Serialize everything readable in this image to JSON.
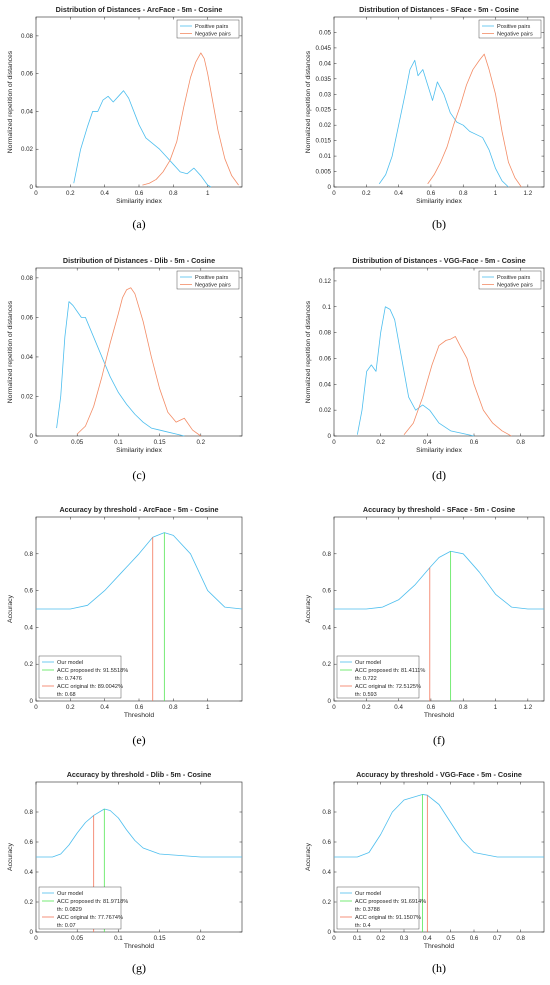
{
  "colors": {
    "positive": "#4dbeee",
    "negative": "#f38c66",
    "proposed": "#55e655",
    "original": "#f3765b",
    "axis": "#262626"
  },
  "chart_data": [
    {
      "type": "line",
      "label": "(a)",
      "title": "Distribution of Distances - ArcFace - 5m - Cosine",
      "xlabel": "Similarity index",
      "ylabel": "Normalized repetition of distances",
      "xlim": [
        0,
        1.2
      ],
      "ylim": [
        0,
        0.09
      ],
      "xticks": [
        0,
        0.2,
        0.4,
        0.6,
        0.8,
        1
      ],
      "yticks": [
        0,
        0.02,
        0.04,
        0.06,
        0.08
      ],
      "legend": {
        "position": "top-right",
        "entries": [
          "Positive pairs",
          "Negative pairs"
        ]
      },
      "series": [
        {
          "name": "Positive pairs",
          "x": [
            0.22,
            0.26,
            0.3,
            0.33,
            0.36,
            0.39,
            0.42,
            0.45,
            0.48,
            0.51,
            0.54,
            0.57,
            0.6,
            0.64,
            0.68,
            0.72,
            0.76,
            0.8,
            0.84,
            0.88,
            0.92,
            0.96,
            1.0,
            1.02
          ],
          "y": [
            0.002,
            0.02,
            0.032,
            0.04,
            0.04,
            0.046,
            0.048,
            0.045,
            0.048,
            0.051,
            0.047,
            0.04,
            0.033,
            0.026,
            0.023,
            0.02,
            0.016,
            0.012,
            0.008,
            0.007,
            0.01,
            0.006,
            0.001,
            0
          ]
        },
        {
          "name": "Negative pairs",
          "x": [
            0.62,
            0.66,
            0.7,
            0.74,
            0.78,
            0.82,
            0.86,
            0.9,
            0.93,
            0.96,
            0.98,
            1.0,
            1.03,
            1.06,
            1.1,
            1.14,
            1.18
          ],
          "y": [
            0.001,
            0.002,
            0.004,
            0.008,
            0.014,
            0.024,
            0.042,
            0.058,
            0.066,
            0.071,
            0.068,
            0.06,
            0.045,
            0.03,
            0.015,
            0.006,
            0.001
          ]
        }
      ]
    },
    {
      "type": "line",
      "label": "(b)",
      "title": "Distribution of Distances - SFace - 5m - Cosine",
      "xlabel": "Similarity index",
      "ylabel": "Normalized repetition of distances",
      "xlim": [
        0,
        1.3
      ],
      "ylim": [
        0,
        0.055
      ],
      "xticks": [
        0,
        0.2,
        0.4,
        0.6,
        0.8,
        1,
        1.2
      ],
      "yticks": [
        0,
        0.005,
        0.01,
        0.015,
        0.02,
        0.025,
        0.03,
        0.035,
        0.04,
        0.045,
        0.05
      ],
      "legend": {
        "position": "top-right",
        "entries": [
          "Positive pairs",
          "Negative pairs"
        ]
      },
      "series": [
        {
          "name": "Positive pairs",
          "x": [
            0.28,
            0.32,
            0.36,
            0.4,
            0.44,
            0.47,
            0.5,
            0.52,
            0.55,
            0.58,
            0.61,
            0.64,
            0.68,
            0.72,
            0.76,
            0.8,
            0.84,
            0.88,
            0.92,
            0.96,
            1.0,
            1.04,
            1.08
          ],
          "y": [
            0.001,
            0.004,
            0.01,
            0.02,
            0.03,
            0.038,
            0.041,
            0.036,
            0.038,
            0.033,
            0.028,
            0.034,
            0.03,
            0.024,
            0.021,
            0.02,
            0.018,
            0.017,
            0.016,
            0.012,
            0.006,
            0.002,
            0
          ]
        },
        {
          "name": "Negative pairs",
          "x": [
            0.58,
            0.62,
            0.66,
            0.7,
            0.74,
            0.78,
            0.82,
            0.86,
            0.9,
            0.93,
            0.96,
            1.0,
            1.04,
            1.08,
            1.12,
            1.16
          ],
          "y": [
            0.001,
            0.004,
            0.008,
            0.013,
            0.02,
            0.026,
            0.033,
            0.038,
            0.041,
            0.043,
            0.038,
            0.03,
            0.018,
            0.008,
            0.003,
            0
          ]
        }
      ]
    },
    {
      "type": "line",
      "label": "(c)",
      "title": "Distribution of Distances - Dlib - 5m - Cosine",
      "xlabel": "Similarity index",
      "ylabel": "Normalized repetition of distances",
      "xlim": [
        0,
        0.25
      ],
      "ylim": [
        0,
        0.085
      ],
      "xticks": [
        0,
        0.05,
        0.1,
        0.15,
        0.2
      ],
      "yticks": [
        0,
        0.02,
        0.04,
        0.06,
        0.08
      ],
      "legend": {
        "position": "top-right",
        "entries": [
          "Positive pairs",
          "Negative pairs"
        ]
      },
      "series": [
        {
          "name": "Positive pairs",
          "x": [
            0.025,
            0.03,
            0.035,
            0.04,
            0.045,
            0.05,
            0.055,
            0.06,
            0.065,
            0.07,
            0.08,
            0.09,
            0.1,
            0.11,
            0.12,
            0.13,
            0.14,
            0.15,
            0.16,
            0.17,
            0.18
          ],
          "y": [
            0.004,
            0.02,
            0.05,
            0.068,
            0.066,
            0.063,
            0.06,
            0.06,
            0.055,
            0.05,
            0.04,
            0.03,
            0.022,
            0.016,
            0.011,
            0.007,
            0.004,
            0.003,
            0.002,
            0.001,
            0
          ]
        },
        {
          "name": "Negative pairs",
          "x": [
            0.05,
            0.06,
            0.07,
            0.08,
            0.09,
            0.1,
            0.105,
            0.11,
            0.115,
            0.12,
            0.13,
            0.14,
            0.15,
            0.16,
            0.17,
            0.18,
            0.19,
            0.2
          ],
          "y": [
            0.001,
            0.005,
            0.015,
            0.03,
            0.047,
            0.062,
            0.07,
            0.074,
            0.075,
            0.072,
            0.058,
            0.04,
            0.024,
            0.012,
            0.007,
            0.009,
            0.003,
            0
          ]
        }
      ]
    },
    {
      "type": "line",
      "label": "(d)",
      "title": "Distribution of Distances - VGG-Face - 5m - Cosine",
      "xlabel": "Similarity index",
      "ylabel": "Normalized repetition of distances",
      "xlim": [
        0,
        0.9
      ],
      "ylim": [
        0,
        0.13
      ],
      "xticks": [
        0,
        0.2,
        0.4,
        0.6,
        0.8
      ],
      "yticks": [
        0,
        0.02,
        0.04,
        0.06,
        0.08,
        0.1,
        0.12
      ],
      "legend": {
        "position": "top-right",
        "entries": [
          "Positive pairs",
          "Negative pairs"
        ]
      },
      "series": [
        {
          "name": "Positive pairs",
          "x": [
            0.1,
            0.12,
            0.14,
            0.16,
            0.18,
            0.2,
            0.22,
            0.24,
            0.26,
            0.28,
            0.3,
            0.32,
            0.35,
            0.38,
            0.41,
            0.45,
            0.5,
            0.55,
            0.6
          ],
          "y": [
            0.001,
            0.02,
            0.05,
            0.055,
            0.05,
            0.08,
            0.1,
            0.098,
            0.09,
            0.07,
            0.05,
            0.03,
            0.02,
            0.024,
            0.02,
            0.01,
            0.004,
            0.002,
            0
          ]
        },
        {
          "name": "Negative pairs",
          "x": [
            0.3,
            0.34,
            0.38,
            0.42,
            0.45,
            0.48,
            0.5,
            0.52,
            0.54,
            0.57,
            0.6,
            0.64,
            0.68,
            0.72,
            0.76
          ],
          "y": [
            0.001,
            0.01,
            0.03,
            0.055,
            0.07,
            0.074,
            0.075,
            0.077,
            0.07,
            0.06,
            0.04,
            0.02,
            0.01,
            0.004,
            0
          ]
        }
      ]
    },
    {
      "type": "line",
      "label": "(e)",
      "title": "Accuracy by threshold - ArcFace - 5m - Cosine",
      "xlabel": "Threshold",
      "ylabel": "Accuracy",
      "xlim": [
        0,
        1.2
      ],
      "ylim": [
        0,
        1
      ],
      "xticks": [
        0,
        0.2,
        0.4,
        0.6,
        0.8,
        1
      ],
      "yticks": [
        0,
        0.2,
        0.4,
        0.6,
        0.8
      ],
      "legend": {
        "position": "bottom-left",
        "entries": [
          "Our model",
          "ACC proposed th: 91.5518%",
          "th: 0.7476",
          "ACC original th: 89.0042%",
          "th: 0.68"
        ]
      },
      "series": [
        {
          "name": "Our model",
          "x": [
            0,
            0.2,
            0.3,
            0.4,
            0.5,
            0.6,
            0.68,
            0.7476,
            0.8,
            0.9,
            1.0,
            1.1,
            1.2
          ],
          "y": [
            0.5,
            0.5,
            0.52,
            0.6,
            0.7,
            0.8,
            0.89,
            0.915,
            0.9,
            0.8,
            0.6,
            0.51,
            0.5
          ]
        }
      ],
      "markers": [
        {
          "name": "ACC proposed",
          "x": 0.7476,
          "y": 0.915
        },
        {
          "name": "ACC original",
          "x": 0.68,
          "y": 0.89
        }
      ]
    },
    {
      "type": "line",
      "label": "(f)",
      "title": "Accuracy by threshold - SFace - 5m - Cosine",
      "xlabel": "Threshold",
      "ylabel": "Accuracy",
      "xlim": [
        0,
        1.3
      ],
      "ylim": [
        0,
        1
      ],
      "xticks": [
        0,
        0.2,
        0.4,
        0.6,
        0.8,
        1,
        1.2
      ],
      "yticks": [
        0,
        0.2,
        0.4,
        0.6,
        0.8
      ],
      "legend": {
        "position": "bottom-left",
        "entries": [
          "Our model",
          "ACC proposed th: 81.4111%",
          "th: 0.722",
          "ACC original th: 72.5125%",
          "th: 0.593"
        ]
      },
      "series": [
        {
          "name": "Our model",
          "x": [
            0,
            0.2,
            0.3,
            0.4,
            0.5,
            0.593,
            0.65,
            0.722,
            0.8,
            0.9,
            1.0,
            1.1,
            1.2,
            1.3
          ],
          "y": [
            0.5,
            0.5,
            0.51,
            0.55,
            0.63,
            0.725,
            0.78,
            0.814,
            0.8,
            0.7,
            0.58,
            0.51,
            0.5,
            0.5
          ]
        }
      ],
      "markers": [
        {
          "name": "ACC proposed",
          "x": 0.722,
          "y": 0.814
        },
        {
          "name": "ACC original",
          "x": 0.593,
          "y": 0.725
        }
      ]
    },
    {
      "type": "line",
      "label": "(g)",
      "title": "Accuracy by threshold - Dlib - 5m - Cosine",
      "xlabel": "Threshold",
      "ylabel": "Accuracy",
      "xlim": [
        0,
        0.25
      ],
      "ylim": [
        0,
        1
      ],
      "xticks": [
        0,
        0.05,
        0.1,
        0.15,
        0.2
      ],
      "yticks": [
        0,
        0.2,
        0.4,
        0.6,
        0.8
      ],
      "legend": {
        "position": "bottom-left",
        "entries": [
          "Our model",
          "ACC proposed th: 81.9718%",
          "th: 0.0829",
          "ACC original th: 77.7674%",
          "th: 0.07"
        ]
      },
      "series": [
        {
          "name": "Our model",
          "x": [
            0,
            0.02,
            0.03,
            0.04,
            0.05,
            0.06,
            0.07,
            0.0829,
            0.09,
            0.1,
            0.11,
            0.12,
            0.13,
            0.15,
            0.2,
            0.25
          ],
          "y": [
            0.5,
            0.5,
            0.52,
            0.58,
            0.66,
            0.73,
            0.777,
            0.82,
            0.81,
            0.76,
            0.68,
            0.61,
            0.56,
            0.52,
            0.5,
            0.5
          ]
        }
      ],
      "markers": [
        {
          "name": "ACC proposed",
          "x": 0.0829,
          "y": 0.82
        },
        {
          "name": "ACC original",
          "x": 0.07,
          "y": 0.777
        }
      ]
    },
    {
      "type": "line",
      "label": "(h)",
      "title": "Accuracy by threshold - VGG-Face - 5m - Cosine",
      "xlabel": "Threshold",
      "ylabel": "Accuracy",
      "xlim": [
        0,
        0.9
      ],
      "ylim": [
        0,
        1
      ],
      "xticks": [
        0,
        0.1,
        0.2,
        0.3,
        0.4,
        0.5,
        0.6,
        0.7,
        0.8
      ],
      "yticks": [
        0,
        0.2,
        0.4,
        0.6,
        0.8
      ],
      "legend": {
        "position": "bottom-left",
        "entries": [
          "Our model",
          "ACC proposed th: 91.6914%",
          "th: 0.3788",
          "ACC original th: 91.1507%",
          "th: 0.4"
        ]
      },
      "series": [
        {
          "name": "Our model",
          "x": [
            0,
            0.1,
            0.15,
            0.2,
            0.25,
            0.3,
            0.3788,
            0.4,
            0.45,
            0.5,
            0.55,
            0.6,
            0.7,
            0.8,
            0.9
          ],
          "y": [
            0.5,
            0.5,
            0.53,
            0.65,
            0.8,
            0.88,
            0.917,
            0.912,
            0.85,
            0.73,
            0.61,
            0.53,
            0.5,
            0.5,
            0.5
          ]
        }
      ],
      "markers": [
        {
          "name": "ACC proposed",
          "x": 0.3788,
          "y": 0.917
        },
        {
          "name": "ACC original",
          "x": 0.4,
          "y": 0.912
        }
      ]
    }
  ]
}
